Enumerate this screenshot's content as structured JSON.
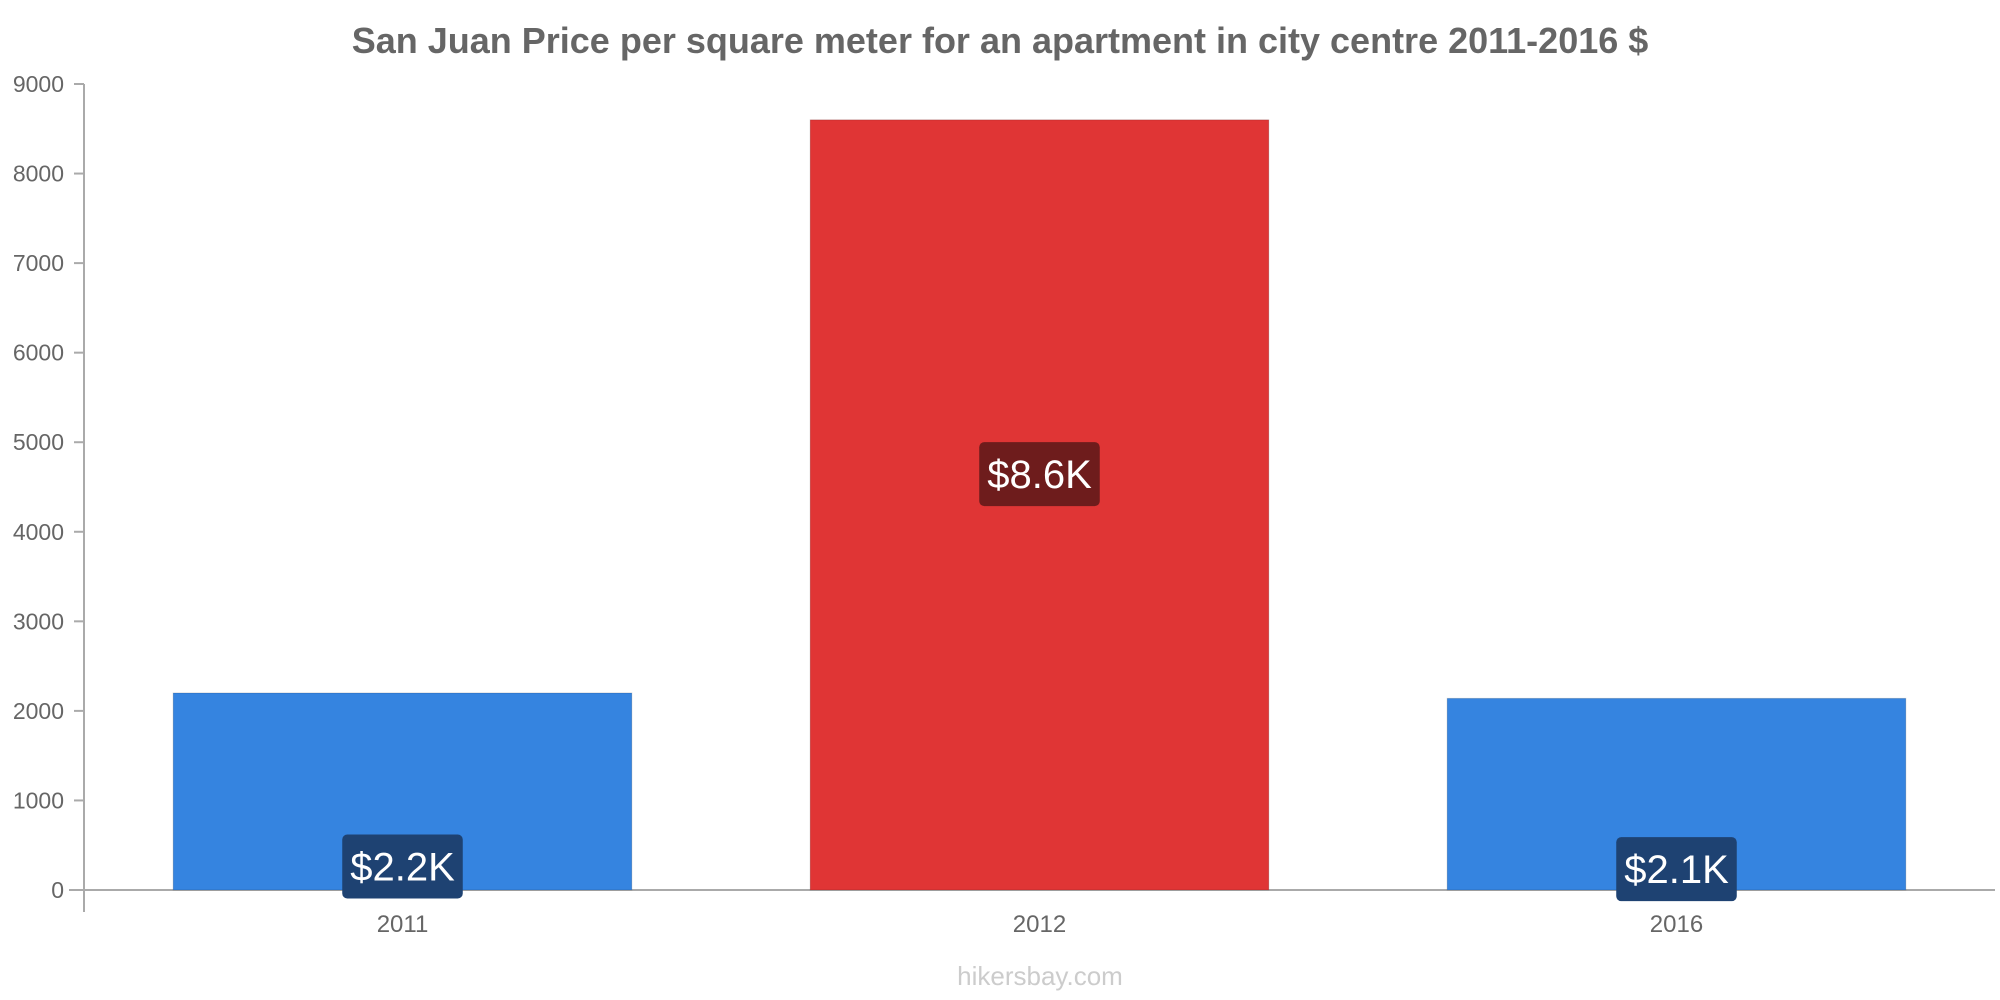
{
  "chart_data": {
    "type": "bar",
    "title": "San Juan Price per square meter for an apartment in city centre 2011-2016 $",
    "categories": [
      "2011",
      "2012",
      "2016"
    ],
    "values": [
      2200,
      8600,
      2140
    ],
    "data_labels": [
      "$2.2K",
      "$8.6K",
      "$2.1K"
    ],
    "bar_colors": [
      "#3584e0",
      "#e03535",
      "#3584e0"
    ],
    "label_bg_colors": [
      "#1e4272",
      "#6e1c1c",
      "#1e4272"
    ],
    "ylim": [
      0,
      9000
    ],
    "yticks": [
      0,
      1000,
      2000,
      3000,
      4000,
      5000,
      6000,
      7000,
      8000,
      9000
    ],
    "xlabel": "",
    "ylabel": "",
    "grid": false,
    "legend": "none"
  },
  "watermark": "hikersbay.com"
}
